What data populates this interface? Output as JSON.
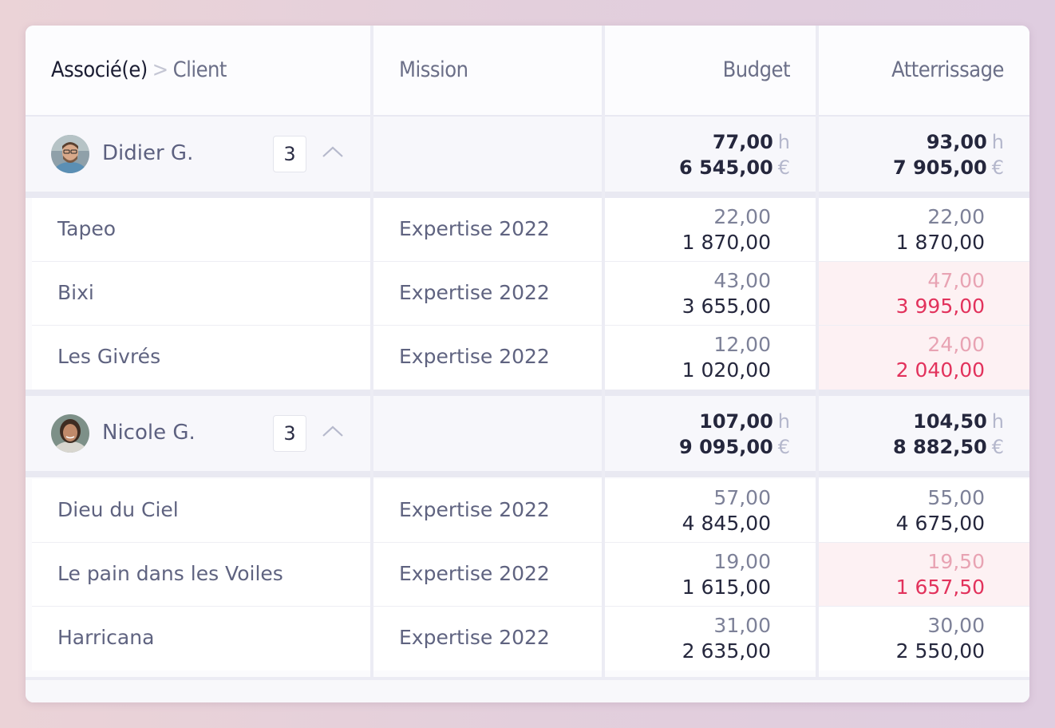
{
  "header": {
    "assoc_label": "Associé(e)",
    "separator": ">",
    "client_label": "Client",
    "mission_label": "Mission",
    "budget_label": "Budget",
    "landing_label": "Atterrissage"
  },
  "units": {
    "hours": "h",
    "euros": "€"
  },
  "colors": {
    "over_budget_bg": "#fdf1f3",
    "over_budget_text": "#e2325c",
    "over_budget_hours": "#e8a3b3"
  },
  "groups": [
    {
      "name": "Didier G.",
      "avatar_icon": "avatar-photo",
      "count": "3",
      "budget_hours": "77,00",
      "budget_euros": "6 545,00",
      "landing_hours": "93,00",
      "landing_euros": "7 905,00",
      "rows": [
        {
          "client": "Tapeo",
          "mission": "Expertise 2022",
          "budget_hours": "22,00",
          "budget_euros": "1 870,00",
          "landing_hours": "22,00",
          "landing_euros": "1 870,00",
          "over": false
        },
        {
          "client": "Bixi",
          "mission": "Expertise 2022",
          "budget_hours": "43,00",
          "budget_euros": "3 655,00",
          "landing_hours": "47,00",
          "landing_euros": "3 995,00",
          "over": true
        },
        {
          "client": "Les Givrés",
          "mission": "Expertise 2022",
          "budget_hours": "12,00",
          "budget_euros": "1 020,00",
          "landing_hours": "24,00",
          "landing_euros": "2 040,00",
          "over": true
        }
      ]
    },
    {
      "name": "Nicole G.",
      "avatar_icon": "avatar-photo",
      "count": "3",
      "budget_hours": "107,00",
      "budget_euros": "9 095,00",
      "landing_hours": "104,50",
      "landing_euros": "8 882,50",
      "rows": [
        {
          "client": "Dieu du Ciel",
          "mission": "Expertise 2022",
          "budget_hours": "57,00",
          "budget_euros": "4 845,00",
          "landing_hours": "55,00",
          "landing_euros": "4 675,00",
          "over": false
        },
        {
          "client": "Le pain dans les Voiles",
          "mission": "Expertise 2022",
          "budget_hours": "19,00",
          "budget_euros": "1 615,00",
          "landing_hours": "19,50",
          "landing_euros": "1 657,50",
          "over": true
        },
        {
          "client": "Harricana",
          "mission": "Expertise 2022",
          "budget_hours": "31,00",
          "budget_euros": "2 635,00",
          "landing_hours": "30,00",
          "landing_euros": "2 550,00",
          "over": false
        }
      ]
    }
  ]
}
